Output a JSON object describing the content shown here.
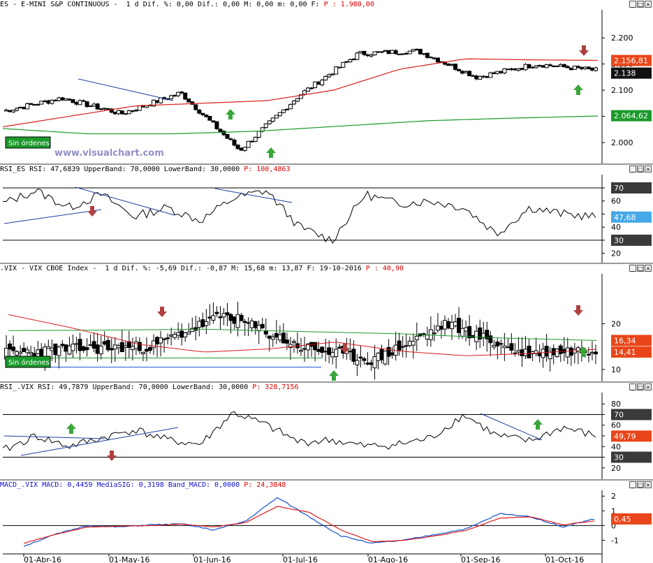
{
  "colors": {
    "red_line": "#d91c1c",
    "green_line": "#1a9a2a",
    "blue_line": "#1550d0",
    "trend_line": "#1c3fa0",
    "up_arrow": "#3aa53a",
    "down_arrow": "#b04040",
    "tag_red": "#e8461a",
    "tag_black": "#111111",
    "tag_green": "#1a9a2a",
    "tag_blue": "#46a8e8",
    "tag_darkgray": "#3a3a3a"
  },
  "window_buttons": [
    "_",
    "□",
    "×"
  ],
  "panels": [
    {
      "header": [
        {
          "text": "ES - E-MINI S&P CONTINUOUS -  1 d Dif. %: 0,00 Dif.: 0,00 M: 0,00 m: 0,00 F: ",
          "color": "black"
        },
        {
          "text": "P : 1.980,00",
          "color": "red"
        }
      ],
      "axis_ticks": [
        "2.200",
        "2.150",
        "2.100",
        "2.050",
        "2.000"
      ],
      "tags": [
        {
          "text": "2.156,81",
          "color": "tag_red"
        },
        {
          "text": "2.138",
          "color": "tag_black"
        },
        {
          "text": "2.064,62",
          "color": "tag_green"
        }
      ],
      "badge": "Sin órdenes",
      "watermark": "www.visualchart.com"
    },
    {
      "header": [
        {
          "text": "RSI_ES RSI: 47,6839 UpperBand: 70,0000 LowerBand: 30,0000 ",
          "color": "black"
        },
        {
          "text": "P: 100,4863",
          "color": "red"
        }
      ],
      "axis_ticks": [
        "70",
        "60",
        "50",
        "40",
        "30",
        "20"
      ],
      "tags": [
        {
          "text": "70",
          "color": "tag_darkgray"
        },
        {
          "text": "47,68",
          "color": "tag_blue"
        },
        {
          "text": "30",
          "color": "tag_darkgray"
        }
      ]
    },
    {
      "header": [
        {
          "text": ".VIX - VIX CBOE Index -  1 d Dif. %: -5,69 Dif.: -0,87 M: 15,68 m: 13,87 F: 19-10-2016 ",
          "color": "black"
        },
        {
          "text": "P : 40,90",
          "color": "red"
        }
      ],
      "axis_ticks": [
        "20",
        "10"
      ],
      "tags": [
        {
          "text": "16,34",
          "color": "tag_red"
        },
        {
          "text": "14,41",
          "color": "tag_red"
        }
      ],
      "badge": "Sin órdenes"
    },
    {
      "header": [
        {
          "text": "RSI_.VIX RSI: 49,7879 UpperBand: 70,0000 LowerBand: 30,0000 ",
          "color": "black"
        },
        {
          "text": "P: 328,7156",
          "color": "red"
        }
      ],
      "axis_ticks": [
        "80",
        "70",
        "60",
        "50",
        "40",
        "30",
        "20"
      ],
      "tags": [
        {
          "text": "70",
          "color": "tag_darkgray"
        },
        {
          "text": "49,79",
          "color": "tag_red"
        },
        {
          "text": "30",
          "color": "tag_darkgray"
        }
      ]
    },
    {
      "header": [
        {
          "text": "MACD_.VIX MACD: 0,4459 MediaSIG: 0,3198 Band_MACD: 0,0000 ",
          "color": "blue"
        },
        {
          "text": "P: 24,3848",
          "color": "red"
        }
      ],
      "axis_ticks": [
        "2",
        "1",
        "0",
        "-1"
      ],
      "tags": [
        {
          "text": "0,45",
          "color": "tag_red"
        }
      ]
    }
  ],
  "x_labels": [
    "01-Abr-16",
    "01-May-16",
    "01-Jun-16",
    "01-Jul-16",
    "01-Ago-16",
    "01-Sep-16",
    "01-Oct-16"
  ],
  "chart_data": [
    {
      "type": "candlestick",
      "symbol": "ES - E-MINI S&P CONTINUOUS",
      "ylim": [
        1960,
        2235
      ],
      "key_points": [
        {
          "x": "01-Abr-16",
          "close": 2060
        },
        {
          "x": "mid-Abr",
          "close": 2085
        },
        {
          "x": "01-May-16",
          "close": 2055
        },
        {
          "x": "01-Jun-16",
          "close": 2095
        },
        {
          "x": "late-Jun",
          "close": 1985
        },
        {
          "x": "01-Jul-16",
          "close": 2090
        },
        {
          "x": "01-Ago-16",
          "close": 2170
        },
        {
          "x": "01-Sep-16",
          "close": 2175
        },
        {
          "x": "mid-Sep",
          "close": 2125
        },
        {
          "x": "01-Oct-16",
          "close": 2150
        },
        {
          "x": "19-Oct",
          "close": 2138
        }
      ],
      "moving_averages": [
        {
          "color": "red",
          "last": 2156.81
        },
        {
          "color": "green",
          "last": 2064.62
        }
      ],
      "last_close": 2138
    },
    {
      "type": "line",
      "name": "RSI_ES RSI",
      "ylim": [
        15,
        78
      ],
      "bands": [
        30,
        70
      ],
      "last": 47.68
    },
    {
      "type": "candlestick",
      "symbol": ".VIX - VIX CBOE Index",
      "ylim": [
        8,
        30
      ],
      "key_points": [
        {
          "x": "01-Abr-16",
          "close": 13.5
        },
        {
          "x": "01-May-16",
          "close": 14.5
        },
        {
          "x": "01-Jun-16",
          "close": 15
        },
        {
          "x": "late-Jun",
          "close": 22
        },
        {
          "x": "01-Jul-16",
          "close": 15
        },
        {
          "x": "01-Ago-16",
          "close": 12
        },
        {
          "x": "mid-Sep",
          "close": 20
        },
        {
          "x": "01-Oct-16",
          "close": 13.5
        },
        {
          "x": "19-Oct",
          "close": 14.41
        }
      ],
      "moving_averages": [
        {
          "color": "red",
          "last": 14.41
        },
        {
          "color": "green",
          "last": 16.34
        }
      ]
    },
    {
      "type": "line",
      "name": "RSI_.VIX RSI",
      "ylim": [
        12,
        88
      ],
      "bands": [
        30,
        70
      ],
      "last": 49.79
    },
    {
      "type": "line",
      "name": "MACD_.VIX",
      "ylim": [
        -1.5,
        2.2
      ],
      "series": [
        {
          "name": "MACD",
          "last": 0.4459
        },
        {
          "name": "MediaSIG",
          "last": 0.3198
        }
      ],
      "zero_band": 0
    }
  ]
}
